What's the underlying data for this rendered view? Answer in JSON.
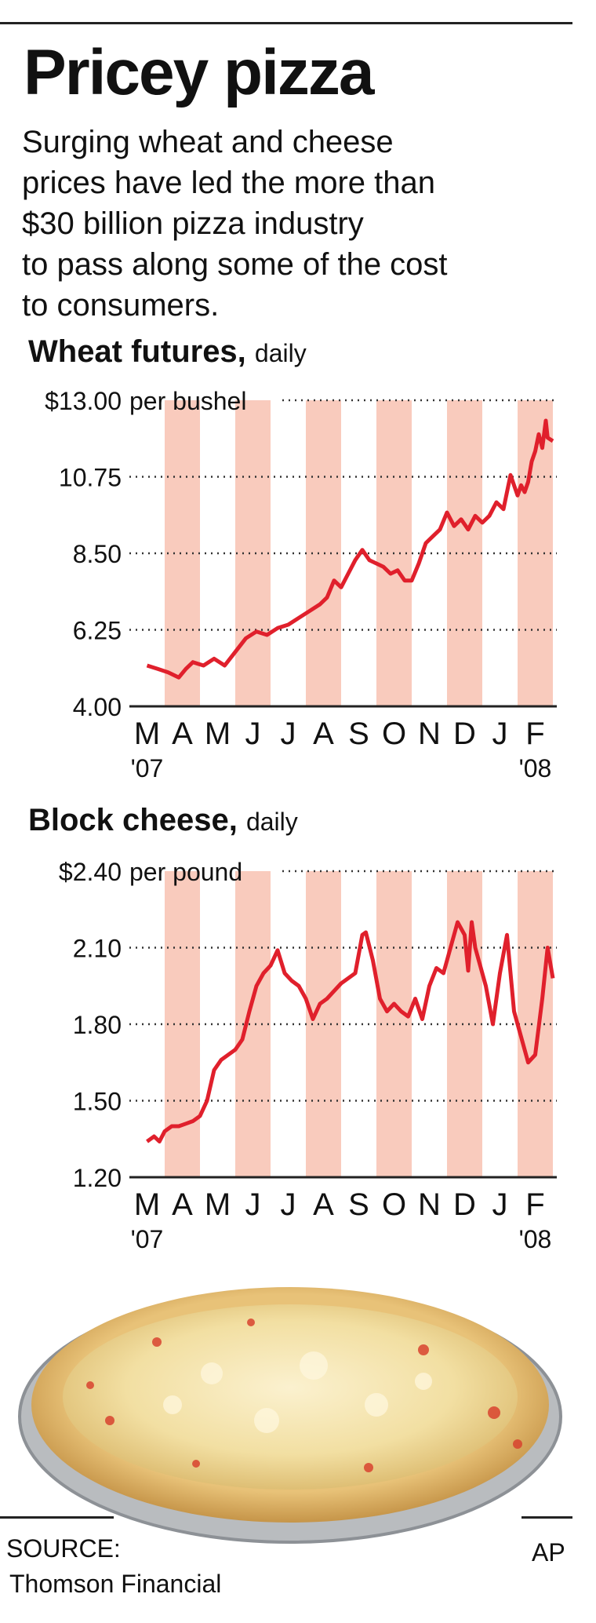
{
  "header": {
    "title": "Pricey pizza",
    "intro_lines": [
      "Surging wheat and cheese",
      "prices have led the more than",
      "$30 billion pizza industry",
      "to pass along some of the cost",
      "to consumers."
    ]
  },
  "footer": {
    "source_label": "SOURCE:",
    "source_value": "Thomson Financial",
    "credit": "AP"
  },
  "colors": {
    "line": "#e0202c",
    "band": "#f9cbbd",
    "axis": "#222222",
    "grid": "#333333"
  },
  "chart_data": [
    {
      "type": "line",
      "title": "Wheat futures,",
      "subtitle": "daily",
      "unit_label": "per bushel",
      "months": [
        "M",
        "A",
        "M",
        "J",
        "J",
        "A",
        "S",
        "O",
        "N",
        "D",
        "J",
        "F"
      ],
      "year_labels": [
        {
          "month_index": 0,
          "text": "'07"
        },
        {
          "month_index": 11,
          "text": "'08"
        }
      ],
      "ylim": [
        4.0,
        13.0
      ],
      "yticks": [
        4.0,
        6.25,
        8.5,
        10.75,
        13.0
      ],
      "ytick_labels": [
        "4.00",
        "6.25",
        "8.50",
        "10.75",
        "$13.00"
      ],
      "grid": "dotted horizontal",
      "shaded_months": [
        1,
        3,
        5,
        7,
        9,
        11
      ],
      "x": [
        0,
        0.3,
        0.6,
        0.9,
        1.1,
        1.3,
        1.6,
        1.9,
        2.2,
        2.5,
        2.8,
        3.1,
        3.4,
        3.7,
        4.0,
        4.3,
        4.6,
        4.9,
        5.1,
        5.3,
        5.5,
        5.7,
        5.9,
        6.1,
        6.3,
        6.5,
        6.7,
        6.9,
        7.1,
        7.3,
        7.5,
        7.7,
        7.9,
        8.1,
        8.3,
        8.5,
        8.7,
        8.9,
        9.1,
        9.3,
        9.5,
        9.7,
        9.9,
        10.1,
        10.3,
        10.5,
        10.6,
        10.7,
        10.8,
        10.9,
        11.0,
        11.1,
        11.2,
        11.3,
        11.35,
        11.5
      ],
      "y": [
        5.2,
        5.1,
        5.0,
        4.85,
        5.1,
        5.3,
        5.2,
        5.4,
        5.2,
        5.6,
        6.0,
        6.2,
        6.1,
        6.3,
        6.4,
        6.6,
        6.8,
        7.0,
        7.2,
        7.7,
        7.5,
        7.9,
        8.3,
        8.6,
        8.3,
        8.2,
        8.1,
        7.9,
        8.0,
        7.7,
        7.7,
        8.2,
        8.8,
        9.0,
        9.2,
        9.7,
        9.3,
        9.5,
        9.2,
        9.6,
        9.4,
        9.6,
        10.0,
        9.8,
        10.8,
        10.2,
        10.5,
        10.3,
        10.6,
        11.2,
        11.5,
        12.0,
        11.6,
        12.4,
        11.9,
        11.8
      ]
    },
    {
      "type": "line",
      "title": "Block cheese,",
      "subtitle": "daily",
      "unit_label": "per pound",
      "months": [
        "M",
        "A",
        "M",
        "J",
        "J",
        "A",
        "S",
        "O",
        "N",
        "D",
        "J",
        "F"
      ],
      "year_labels": [
        {
          "month_index": 0,
          "text": "'07"
        },
        {
          "month_index": 11,
          "text": "'08"
        }
      ],
      "ylim": [
        1.2,
        2.4
      ],
      "yticks": [
        1.2,
        1.5,
        1.8,
        2.1,
        2.4
      ],
      "ytick_labels": [
        "1.20",
        "1.50",
        "1.80",
        "2.10",
        "$2.40"
      ],
      "grid": "dotted horizontal",
      "shaded_months": [
        1,
        3,
        5,
        7,
        9,
        11
      ],
      "x": [
        0,
        0.2,
        0.35,
        0.5,
        0.7,
        0.9,
        1.1,
        1.3,
        1.5,
        1.7,
        1.9,
        2.1,
        2.3,
        2.5,
        2.7,
        2.9,
        3.1,
        3.3,
        3.5,
        3.7,
        3.9,
        4.1,
        4.3,
        4.5,
        4.7,
        4.9,
        5.1,
        5.3,
        5.5,
        5.7,
        5.9,
        6.1,
        6.2,
        6.4,
        6.6,
        6.8,
        7.0,
        7.2,
        7.4,
        7.6,
        7.8,
        8.0,
        8.2,
        8.4,
        8.6,
        8.8,
        9.0,
        9.1,
        9.2,
        9.3,
        9.4,
        9.6,
        9.8,
        10.0,
        10.2,
        10.4,
        10.6,
        10.8,
        11.0,
        11.2,
        11.35,
        11.5
      ],
      "y": [
        1.34,
        1.36,
        1.34,
        1.38,
        1.4,
        1.4,
        1.41,
        1.42,
        1.44,
        1.5,
        1.62,
        1.66,
        1.68,
        1.7,
        1.74,
        1.85,
        1.95,
        2.0,
        2.03,
        2.09,
        2.0,
        1.97,
        1.95,
        1.9,
        1.82,
        1.88,
        1.9,
        1.93,
        1.96,
        1.98,
        2.0,
        2.15,
        2.16,
        2.05,
        1.9,
        1.85,
        1.88,
        1.85,
        1.83,
        1.9,
        1.82,
        1.95,
        2.02,
        2.0,
        2.1,
        2.2,
        2.15,
        2.01,
        2.2,
        2.1,
        2.05,
        1.95,
        1.8,
        2.0,
        2.15,
        1.85,
        1.75,
        1.65,
        1.68,
        1.9,
        2.1,
        1.98
      ]
    }
  ]
}
